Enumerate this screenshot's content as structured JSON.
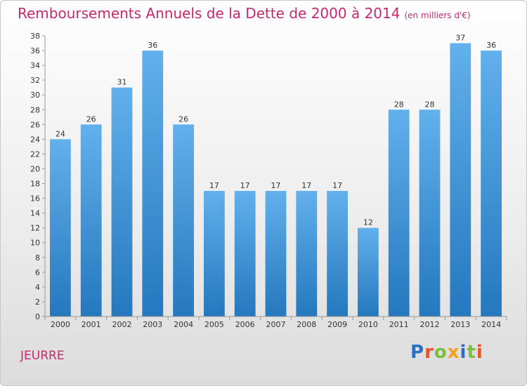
{
  "title": "Remboursements Annuels de la Dette de 2000 à 2014",
  "subtitle": "(en milliers d'€)",
  "commune": "JEURRE",
  "brand": {
    "letters": [
      "P",
      "r",
      "o",
      "x",
      "i",
      "t",
      "i"
    ],
    "colors": [
      "#2e6fc4",
      "#e8532a",
      "#7cbf3a",
      "#f2a01d",
      "#2e6fc4",
      "#7cbf3a",
      "#e8532a"
    ]
  },
  "chart_data": {
    "type": "bar",
    "categories": [
      "2000",
      "2001",
      "2002",
      "2003",
      "2004",
      "2005",
      "2006",
      "2007",
      "2008",
      "2009",
      "2010",
      "2011",
      "2012",
      "2013",
      "2014"
    ],
    "values": [
      24,
      26,
      31,
      36,
      26,
      17,
      17,
      17,
      17,
      17,
      12,
      28,
      28,
      37,
      36
    ],
    "data_labels": [
      "24",
      "26",
      "31",
      "36",
      "26",
      "17",
      "17",
      "17",
      "17",
      "17",
      "12",
      "28",
      "28",
      "37",
      "36"
    ],
    "ylim": [
      0,
      38
    ],
    "yticks": [
      0,
      2,
      4,
      6,
      8,
      10,
      12,
      14,
      16,
      18,
      20,
      22,
      24,
      26,
      28,
      30,
      32,
      34,
      36,
      38
    ],
    "grid": false,
    "bar_color_light": "#62b0ec",
    "bar_color_dark": "#2578be"
  }
}
